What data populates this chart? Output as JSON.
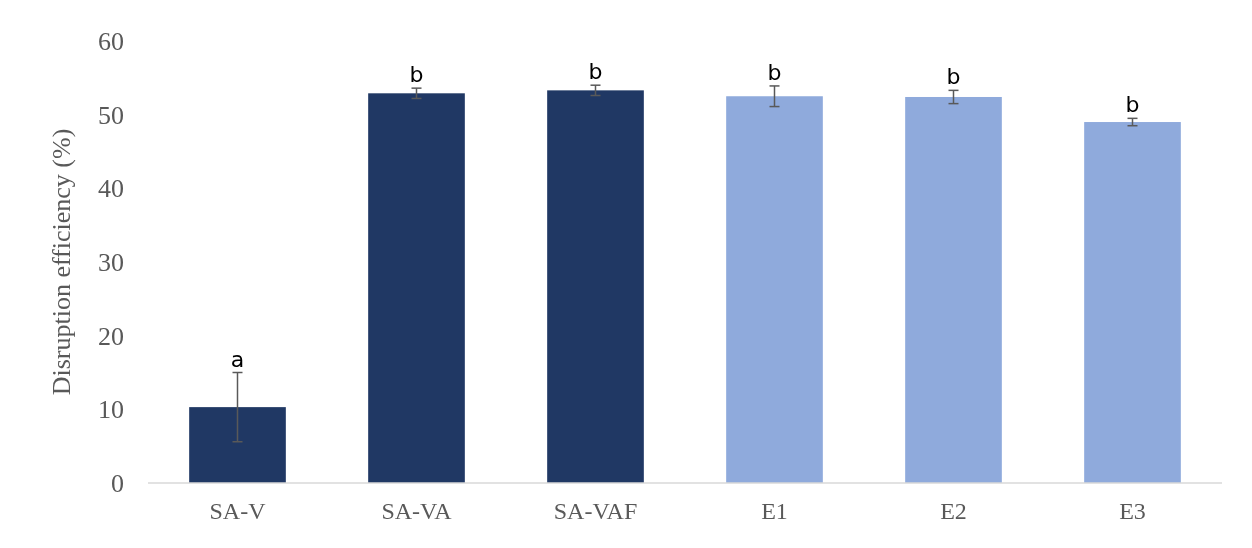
{
  "chart_data": {
    "type": "bar",
    "ylabel": "Disruption efficiency (%)",
    "categories": [
      "SA-V",
      "SA-VA",
      "SA-VAF",
      "E1",
      "E2",
      "E3"
    ],
    "values": [
      10.3,
      52.9,
      53.3,
      52.5,
      52.4,
      49.0
    ],
    "colors": [
      "#203864",
      "#203864",
      "#203864",
      "#8faadc",
      "#8faadc",
      "#8faadc"
    ],
    "errors": [
      4.7,
      0.7,
      0.7,
      1.4,
      0.9,
      0.5
    ],
    "ylim": [
      0,
      60
    ],
    "yticks": [
      0,
      10,
      20,
      30,
      40,
      50,
      60
    ],
    "grid": false,
    "annotations": [
      {
        "text": "a",
        "x": "SA-V",
        "y": 15.0
      },
      {
        "text": "b",
        "x": "SA-VA",
        "y": 53.6
      },
      {
        "text": "b",
        "x": "SA-VAF",
        "y": 54.0
      },
      {
        "text": "b",
        "x": "E1",
        "y": 53.9
      },
      {
        "text": "b",
        "x": "E2",
        "y": 53.3
      },
      {
        "text": "b",
        "x": "E3",
        "y": 49.5
      }
    ]
  }
}
